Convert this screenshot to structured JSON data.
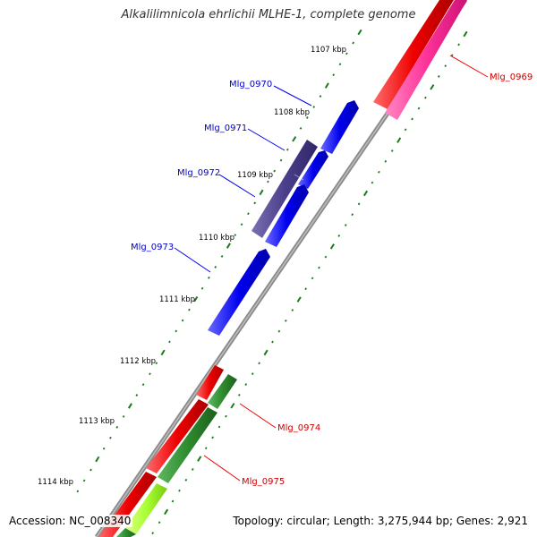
{
  "title": "Alkalilimnicola ehrlichii MLHE-1, complete genome",
  "accession_label": "Accession: NC_008340",
  "summary_label": "Topology: circular; Length: 3,275,944 bp; Genes: 2,921",
  "colors": {
    "backbone": "#8a8a8a",
    "tick_dots": "#1a7a1a",
    "forward_gene": "#0000ee",
    "forward_gene_dark": "#4b3f8c",
    "reverse_gene": "#ee0000",
    "reverse_gene_pink": "#ff3399",
    "green_gene": "#2e8b2e",
    "lime_gene": "#aaff33",
    "label_blue": "#0000cc",
    "label_red": "#cc0000"
  },
  "ticks": [
    {
      "label": "1107 kbp"
    },
    {
      "label": "1108 kbp"
    },
    {
      "label": "1109 kbp"
    },
    {
      "label": "1110 kbp"
    },
    {
      "label": "1111 kbp"
    },
    {
      "label": "1112 kbp"
    },
    {
      "label": "1113 kbp"
    },
    {
      "label": "1114 kbp"
    }
  ],
  "genes": [
    {
      "name": "Mlg_0969",
      "strand": "reverse"
    },
    {
      "name": "Mlg_0970",
      "strand": "forward"
    },
    {
      "name": "Mlg_0971",
      "strand": "forward"
    },
    {
      "name": "Mlg_0972",
      "strand": "forward"
    },
    {
      "name": "Mlg_0973",
      "strand": "forward"
    },
    {
      "name": "Mlg_0974",
      "strand": "reverse"
    },
    {
      "name": "Mlg_0975",
      "strand": "reverse"
    }
  ]
}
